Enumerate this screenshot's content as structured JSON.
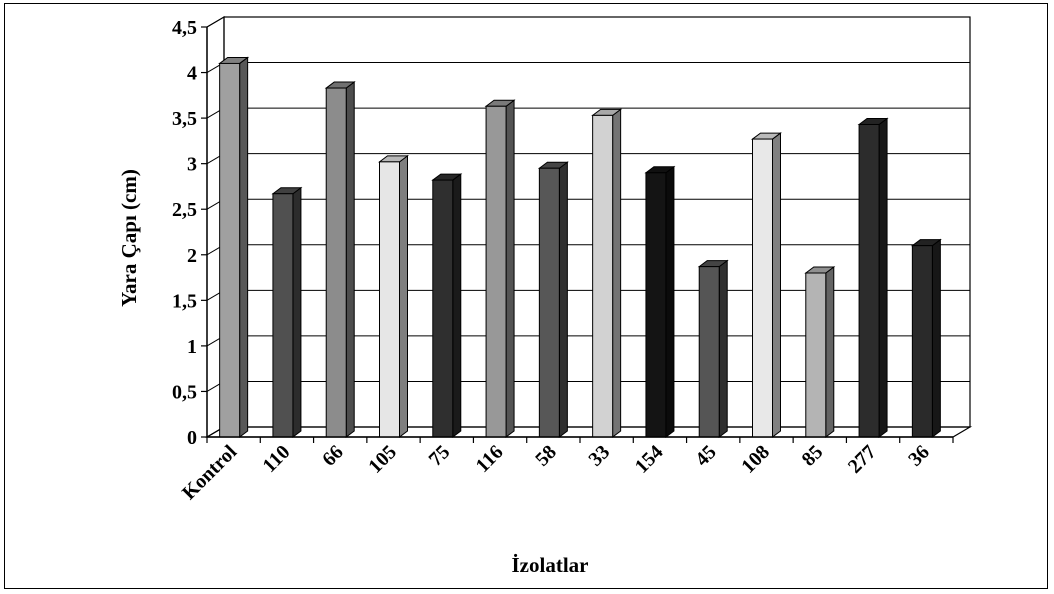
{
  "chart_data": {
    "type": "bar",
    "title": "",
    "xlabel": "İzolatlar",
    "ylabel": "Yara Çapı (cm)",
    "ylim": [
      0,
      4.5
    ],
    "yticks": [
      "0",
      "0,5",
      "1",
      "1,5",
      "2",
      "2,5",
      "3",
      "3,5",
      "4",
      "4,5"
    ],
    "grid": true,
    "legend": "none",
    "categories": [
      "Kontrol",
      "110",
      "66",
      "105",
      "75",
      "116",
      "58",
      "33",
      "154",
      "45",
      "108",
      "85",
      "277",
      "36"
    ],
    "values": [
      4.1,
      2.67,
      3.83,
      3.02,
      2.82,
      3.63,
      2.95,
      3.53,
      2.9,
      1.87,
      3.27,
      1.8,
      3.43,
      2.1
    ],
    "colors": [
      "#a0a0a0",
      "#505050",
      "#8c8c8c",
      "#e6e6e6",
      "#2f2f2f",
      "#989898",
      "#575757",
      "#d2d2d2",
      "#141414",
      "#555555",
      "#e8e8e8",
      "#b4b4b4",
      "#2c2c2c",
      "#2a2a2a"
    ]
  }
}
